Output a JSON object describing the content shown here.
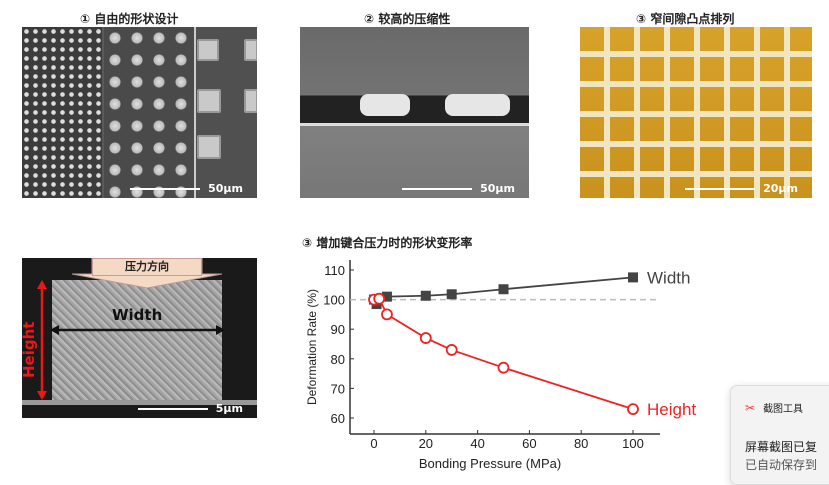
{
  "panels": [
    {
      "title": "① 自由的形状设计",
      "scale": "50μm"
    },
    {
      "title": "② 较高的压缩性",
      "scale": "50μm"
    },
    {
      "title": "③ 窄间隙凸点排列",
      "scale": "20μm"
    },
    {
      "scale": "5μm",
      "pressure_label": "压力方向",
      "width_label": "Width",
      "height_label": "Height"
    }
  ],
  "chart_title": "③ 增加键合压力时的形状变形率",
  "chart_data": {
    "type": "line",
    "title": "③ 增加键合压力时的形状变形率",
    "xlabel": "Bonding Pressure (MPa)",
    "ylabel": "Deformation Rate (%)",
    "xlim": [
      -10,
      110
    ],
    "ylim": [
      55,
      115
    ],
    "xticks": [
      0,
      20,
      40,
      60,
      80,
      100
    ],
    "yticks": [
      60,
      70,
      80,
      90,
      100,
      110
    ],
    "reference_line": 100,
    "series": [
      {
        "name": "Width",
        "color": "#444444",
        "marker": "square-filled",
        "x": [
          0,
          1,
          5,
          20,
          30,
          50,
          100
        ],
        "y": [
          100,
          98.5,
          101,
          101.3,
          101.8,
          103.5,
          107.5
        ]
      },
      {
        "name": "Height",
        "color": "#ee2222",
        "marker": "circle-open",
        "x": [
          0,
          2,
          5,
          20,
          30,
          50,
          100
        ],
        "y": [
          100,
          100.3,
          95,
          87,
          83,
          77,
          63
        ]
      }
    ]
  },
  "toast": {
    "app": "截图工具",
    "line1": "屏幕截图已复",
    "line2": "已自动保存到"
  }
}
